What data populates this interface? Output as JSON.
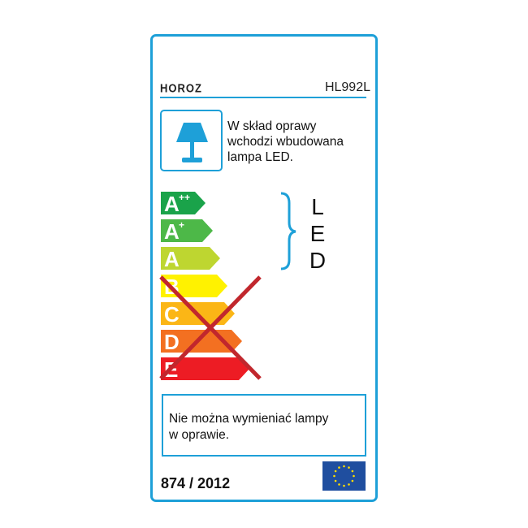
{
  "header": {
    "brand": "HOROZ",
    "model": "HL992L"
  },
  "lamp_info": {
    "icon": "table-lamp-icon",
    "text_lines": [
      "W skład oprawy",
      "wchodzi wbudowana",
      "lampa LED."
    ]
  },
  "energy_classes": [
    {
      "label": "A",
      "sup": "++",
      "color": "#1aa34a"
    },
    {
      "label": "A",
      "sup": "+",
      "color": "#4db848"
    },
    {
      "label": "A",
      "sup": "",
      "color": "#bed630"
    },
    {
      "label": "B",
      "sup": "",
      "color": "#fff200"
    },
    {
      "label": "C",
      "sup": "",
      "color": "#fbb616"
    },
    {
      "label": "D",
      "sup": "",
      "color": "#f37021"
    },
    {
      "label": "E",
      "sup": "",
      "color": "#ed1c24"
    }
  ],
  "crossed_out_classes": [
    "B",
    "C",
    "D",
    "E"
  ],
  "cross_color": "#c1272d",
  "led_label": [
    "L",
    "E",
    "D"
  ],
  "note_lines": [
    "Nie można wymieniać lampy",
    "w oprawie."
  ],
  "regulation": "874 / 2012",
  "accent_color": "#1ea0d8"
}
